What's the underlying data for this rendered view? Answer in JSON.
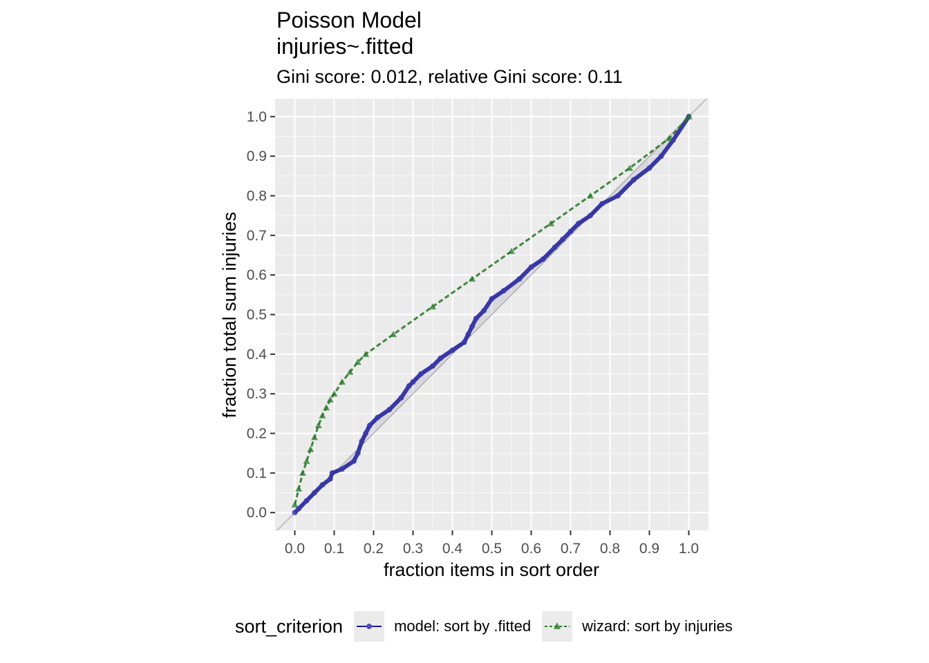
{
  "chart_data": {
    "type": "line",
    "title_line1": "Poisson Model",
    "title_line2": "injuries~.fitted",
    "subtitle": "Gini score: 0.012, relative Gini score: 0.11",
    "xlabel": "fraction items in sort order",
    "ylabel": "fraction total sum injuries",
    "xlim": [
      -0.05,
      1.05
    ],
    "ylim": [
      -0.045,
      1.045
    ],
    "xticks": [
      "0.0",
      "0.1",
      "0.2",
      "0.3",
      "0.4",
      "0.5",
      "0.6",
      "0.7",
      "0.8",
      "0.9",
      "1.0"
    ],
    "yticks": [
      "0.0",
      "0.1",
      "0.2",
      "0.3",
      "0.4",
      "0.5",
      "0.6",
      "0.7",
      "0.8",
      "0.9",
      "1.0"
    ],
    "grid": true,
    "diagonal_reference": true,
    "legend_title": "sort_criterion",
    "legend_position": "bottom",
    "series": [
      {
        "name": "model: sort by .fitted",
        "color": "#1a1a99",
        "line": "solid",
        "marker": "circle",
        "x": [
          0.0,
          0.01,
          0.03,
          0.05,
          0.07,
          0.09,
          0.095,
          0.12,
          0.15,
          0.16,
          0.17,
          0.18,
          0.19,
          0.21,
          0.24,
          0.27,
          0.29,
          0.3,
          0.32,
          0.35,
          0.37,
          0.4,
          0.43,
          0.44,
          0.45,
          0.46,
          0.48,
          0.5,
          0.53,
          0.57,
          0.6,
          0.63,
          0.66,
          0.68,
          0.7,
          0.72,
          0.75,
          0.78,
          0.82,
          0.86,
          0.9,
          0.93,
          0.96,
          1.0
        ],
        "y": [
          0.0,
          0.01,
          0.03,
          0.05,
          0.07,
          0.085,
          0.1,
          0.11,
          0.13,
          0.15,
          0.18,
          0.2,
          0.22,
          0.24,
          0.26,
          0.29,
          0.32,
          0.33,
          0.35,
          0.37,
          0.39,
          0.41,
          0.43,
          0.45,
          0.47,
          0.49,
          0.51,
          0.54,
          0.56,
          0.59,
          0.62,
          0.64,
          0.67,
          0.69,
          0.71,
          0.73,
          0.75,
          0.78,
          0.8,
          0.84,
          0.87,
          0.9,
          0.94,
          1.0
        ]
      },
      {
        "name": "wizard: sort by injuries",
        "color": "#2a7a2a",
        "line": "dashed",
        "marker": "triangle",
        "x": [
          0.0,
          0.01,
          0.02,
          0.03,
          0.04,
          0.05,
          0.06,
          0.07,
          0.08,
          0.09,
          0.1,
          0.12,
          0.14,
          0.16,
          0.18,
          0.25,
          0.35,
          0.45,
          0.55,
          0.65,
          0.75,
          0.85,
          0.95,
          1.0
        ],
        "y": [
          0.02,
          0.06,
          0.1,
          0.13,
          0.16,
          0.19,
          0.22,
          0.245,
          0.265,
          0.285,
          0.3,
          0.33,
          0.355,
          0.38,
          0.4,
          0.45,
          0.52,
          0.59,
          0.66,
          0.73,
          0.8,
          0.87,
          0.945,
          1.0
        ]
      }
    ]
  }
}
